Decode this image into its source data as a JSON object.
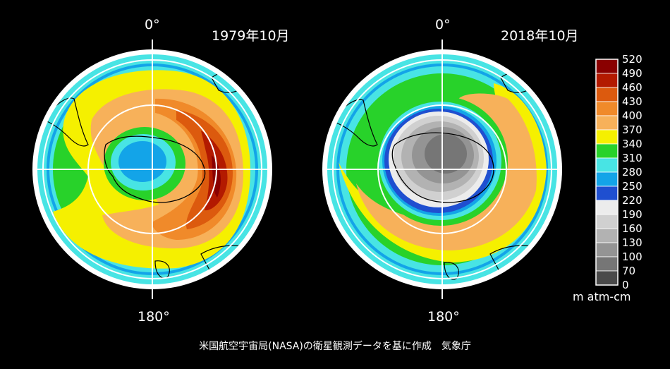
{
  "maps": [
    {
      "date_label": "1979年10月",
      "top_label": "0°",
      "bottom_label": "180°",
      "description": "Total ozone, southern hemisphere polar view (1979 Oct)"
    },
    {
      "date_label": "2018年10月",
      "top_label": "0°",
      "bottom_label": "180°",
      "description": "Total ozone, southern hemisphere polar view (2018 Oct)"
    }
  ],
  "colorbar": {
    "unit": "m atm-cm",
    "ticks": [
      "520",
      "490",
      "460",
      "430",
      "400",
      "370",
      "340",
      "310",
      "280",
      "250",
      "220",
      "190",
      "160",
      "130",
      "100",
      "70",
      "0"
    ],
    "bins": [
      {
        "range": "490-520",
        "color": "#8a0000"
      },
      {
        "range": "460-490",
        "color": "#b31a00"
      },
      {
        "range": "430-460",
        "color": "#dc5a0e"
      },
      {
        "range": "400-430",
        "color": "#f08a2a"
      },
      {
        "range": "370-400",
        "color": "#f7b15a"
      },
      {
        "range": "340-370",
        "color": "#f5f000"
      },
      {
        "range": "310-340",
        "color": "#28d22a"
      },
      {
        "range": "280-310",
        "color": "#48e4e4"
      },
      {
        "range": "250-280",
        "color": "#13a4e8"
      },
      {
        "range": "220-250",
        "color": "#1f4fd0"
      },
      {
        "range": "190-220",
        "color": "#ececec"
      },
      {
        "range": "160-190",
        "color": "#d0d0d0"
      },
      {
        "range": "130-160",
        "color": "#b2b2b2"
      },
      {
        "range": "100-130",
        "color": "#949494"
      },
      {
        "range": "70-100",
        "color": "#767676"
      },
      {
        "range": "0-70",
        "color": "#4a4a4a"
      }
    ]
  },
  "credit": "米国航空宇宙局(NASA)の衛星観測データを基に作成　気象庁"
}
